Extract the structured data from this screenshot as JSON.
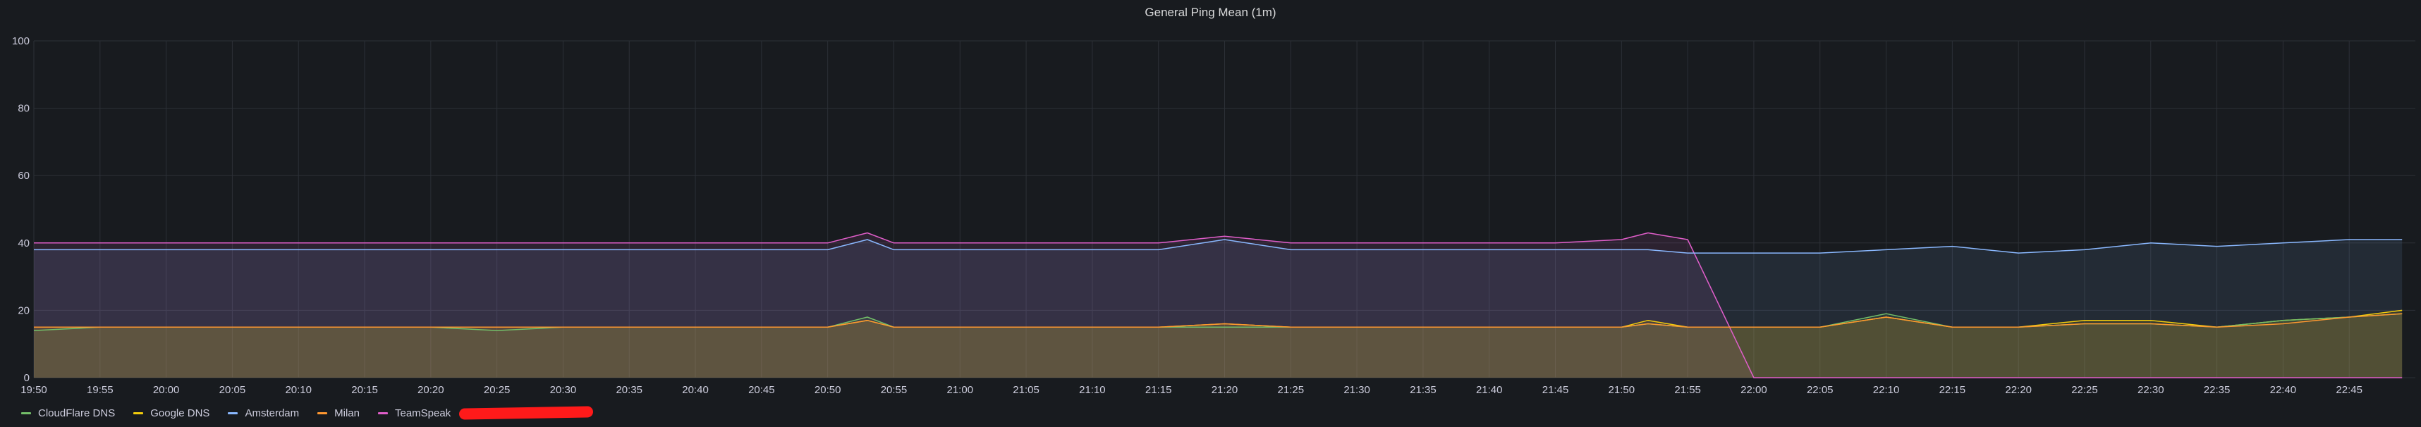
{
  "panel": {
    "title": "General Ping Mean (1m)"
  },
  "colors": {
    "background": "#181b1f",
    "grid": "#2c3037",
    "axis_text": "#ccccdc",
    "redaction": "#ff1a1a"
  },
  "chart_data": {
    "type": "area",
    "title": "General Ping Mean (1m)",
    "xlabel": "",
    "ylabel": "",
    "ylim": [
      0,
      100
    ],
    "yticks": [
      0,
      20,
      40,
      60,
      80,
      100
    ],
    "xlim": [
      "19:50",
      "22:50"
    ],
    "xticks": [
      "19:50",
      "19:55",
      "20:00",
      "20:05",
      "20:10",
      "20:15",
      "20:20",
      "20:25",
      "20:30",
      "20:35",
      "20:40",
      "20:45",
      "20:50",
      "20:55",
      "21:00",
      "21:05",
      "21:10",
      "21:15",
      "21:20",
      "21:25",
      "21:30",
      "21:35",
      "21:40",
      "21:45",
      "21:50",
      "21:55",
      "22:00",
      "22:05",
      "22:10",
      "22:15",
      "22:20",
      "22:25",
      "22:30",
      "22:35",
      "22:40",
      "22:45"
    ],
    "grid": true,
    "legend_position": "bottom-left",
    "x": [
      "19:50",
      "19:55",
      "20:00",
      "20:05",
      "20:10",
      "20:15",
      "20:20",
      "20:25",
      "20:30",
      "20:35",
      "20:40",
      "20:45",
      "20:50",
      "20:53",
      "20:55",
      "21:00",
      "21:05",
      "21:10",
      "21:15",
      "21:20",
      "21:25",
      "21:30",
      "21:35",
      "21:40",
      "21:45",
      "21:50",
      "21:52",
      "21:55",
      "22:00",
      "22:05",
      "22:10",
      "22:15",
      "22:20",
      "22:25",
      "22:30",
      "22:35",
      "22:40",
      "22:45",
      "22:49"
    ],
    "series": [
      {
        "name": "CloudFlare DNS",
        "color": "#73bf69",
        "values": [
          14,
          15,
          15,
          15,
          15,
          15,
          15,
          14,
          15,
          15,
          15,
          15,
          15,
          18,
          15,
          15,
          15,
          15,
          15,
          15,
          15,
          15,
          15,
          15,
          15,
          15,
          16,
          15,
          15,
          15,
          19,
          15,
          15,
          16,
          16,
          15,
          17,
          18,
          19
        ]
      },
      {
        "name": "Google DNS",
        "color": "#f2cc0c",
        "values": [
          15,
          15,
          15,
          15,
          15,
          15,
          15,
          15,
          15,
          15,
          15,
          15,
          15,
          17,
          15,
          15,
          15,
          15,
          15,
          16,
          15,
          15,
          15,
          15,
          15,
          15,
          17,
          15,
          15,
          15,
          18,
          15,
          15,
          17,
          17,
          15,
          17,
          18,
          20
        ]
      },
      {
        "name": "Amsterdam",
        "color": "#8ab8ff",
        "values": [
          38,
          38,
          38,
          38,
          38,
          38,
          38,
          38,
          38,
          38,
          38,
          38,
          38,
          41,
          38,
          38,
          38,
          38,
          38,
          41,
          38,
          38,
          38,
          38,
          38,
          38,
          38,
          37,
          37,
          37,
          38,
          39,
          37,
          38,
          40,
          39,
          40,
          41,
          41
        ]
      },
      {
        "name": "Milan",
        "color": "#ff9830",
        "values": [
          15,
          15,
          15,
          15,
          15,
          15,
          15,
          15,
          15,
          15,
          15,
          15,
          15,
          17,
          15,
          15,
          15,
          15,
          15,
          16,
          15,
          15,
          15,
          15,
          15,
          15,
          16,
          15,
          15,
          15,
          18,
          15,
          15,
          16,
          16,
          15,
          16,
          18,
          19
        ]
      },
      {
        "name": "TeamSpeak",
        "color": "#e05eca",
        "values": [
          40,
          40,
          40,
          40,
          40,
          40,
          40,
          40,
          40,
          40,
          40,
          40,
          40,
          43,
          40,
          40,
          40,
          40,
          40,
          42,
          40,
          40,
          40,
          40,
          40,
          41,
          43,
          41,
          0,
          0,
          0,
          0,
          0,
          0,
          0,
          0,
          0,
          0,
          0
        ]
      }
    ]
  },
  "legend": {
    "items": [
      {
        "label": "CloudFlare DNS",
        "color": "#73bf69"
      },
      {
        "label": "Google DNS",
        "color": "#f2cc0c"
      },
      {
        "label": "Amsterdam",
        "color": "#8ab8ff"
      },
      {
        "label": "Milan",
        "color": "#ff9830"
      },
      {
        "label": "TeamSpeak",
        "color": "#e05eca"
      }
    ]
  }
}
